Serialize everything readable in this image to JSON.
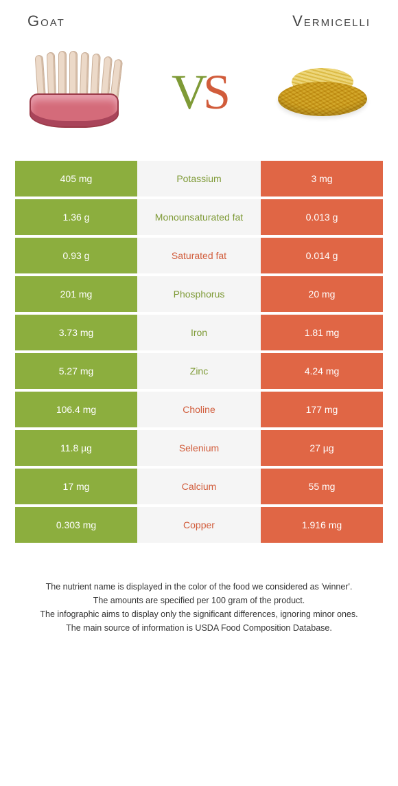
{
  "header": {
    "left_title": "Goat",
    "right_title": "Vermicelli"
  },
  "vs": {
    "v": "V",
    "s": "S"
  },
  "colors": {
    "green": "#8cae3e",
    "orange": "#e06645",
    "mid_bg": "#f5f5f5",
    "green_text": "#7e9a36",
    "orange_text": "#d15c3b"
  },
  "rows": [
    {
      "left": "405 mg",
      "mid": "Potassium",
      "right": "3 mg",
      "winner": "green"
    },
    {
      "left": "1.36 g",
      "mid": "Monounsaturated fat",
      "right": "0.013 g",
      "winner": "green"
    },
    {
      "left": "0.93 g",
      "mid": "Saturated fat",
      "right": "0.014 g",
      "winner": "orange"
    },
    {
      "left": "201 mg",
      "mid": "Phosphorus",
      "right": "20 mg",
      "winner": "green"
    },
    {
      "left": "3.73 mg",
      "mid": "Iron",
      "right": "1.81 mg",
      "winner": "green"
    },
    {
      "left": "5.27 mg",
      "mid": "Zinc",
      "right": "4.24 mg",
      "winner": "green"
    },
    {
      "left": "106.4 mg",
      "mid": "Choline",
      "right": "177 mg",
      "winner": "orange"
    },
    {
      "left": "11.8 µg",
      "mid": "Selenium",
      "right": "27 µg",
      "winner": "orange"
    },
    {
      "left": "17 mg",
      "mid": "Calcium",
      "right": "55 mg",
      "winner": "orange"
    },
    {
      "left": "0.303 mg",
      "mid": "Copper",
      "right": "1.916 mg",
      "winner": "orange"
    }
  ],
  "footnotes": {
    "l1": "The nutrient name is displayed in the color of the food we considered as 'winner'.",
    "l2": "The amounts are specified per 100 gram of the product.",
    "l3": "The infographic aims to display only the significant differences, ignoring minor ones.",
    "l4": "The main source of information is USDA Food Composition Database."
  }
}
